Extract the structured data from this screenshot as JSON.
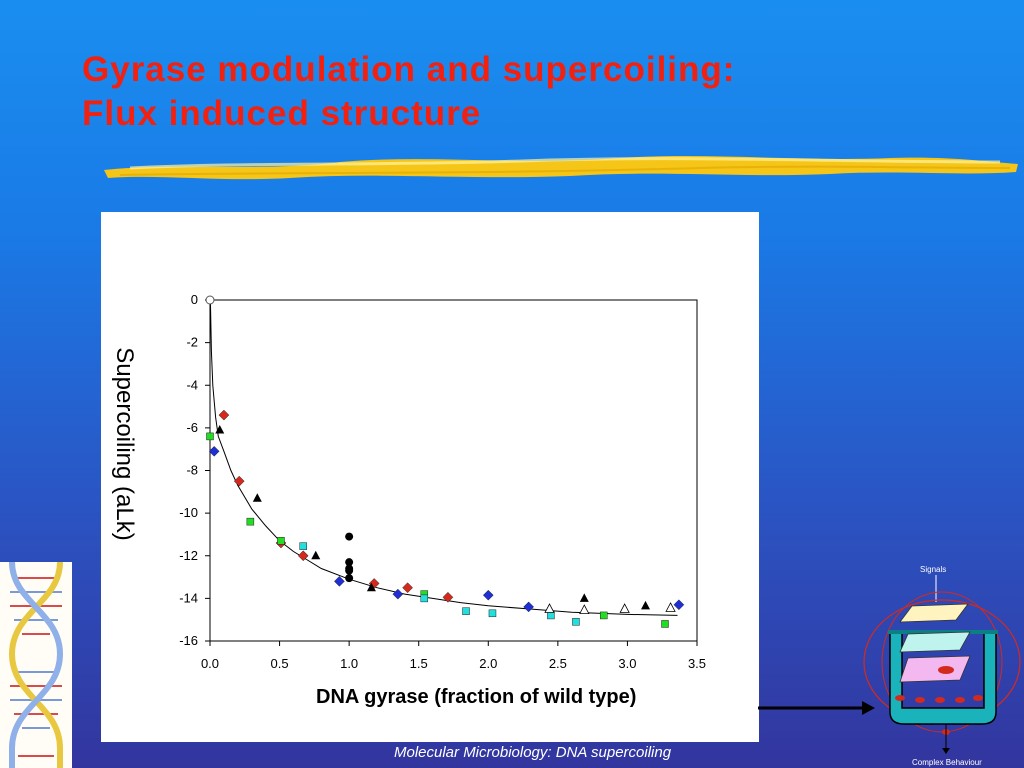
{
  "slide": {
    "title_line1": "Gyrase modulation and supercoiling:",
    "title_line2": "Flux induced structure",
    "footer": "Molecular Microbiology: DNA supercoiling"
  },
  "colors": {
    "title": "#f2200f",
    "brush": "#f5c518",
    "marker_blue": "#1f2fd6",
    "marker_red": "#d42a1e",
    "marker_green": "#22dd22",
    "marker_cyan": "#22dede",
    "marker_black": "#000000"
  },
  "diagram": {
    "signals_label": "Signals",
    "complex_label": "Complex Behaviour"
  },
  "chart_data": {
    "type": "scatter",
    "title": "",
    "xlabel": "DNA gyrase (fraction of wild type)",
    "ylabel": "Supercoiling (aLk)",
    "xlim": [
      0,
      3.5
    ],
    "ylim": [
      -16,
      0
    ],
    "x_ticks": [
      "0.0",
      "0.5",
      "1.0",
      "1.5",
      "2.0",
      "2.5",
      "3.0",
      "3.5"
    ],
    "y_ticks": [
      "0",
      "-2",
      "-4",
      "-6",
      "-8",
      "-10",
      "-12",
      "-14",
      "-16"
    ],
    "grid": false,
    "legend": "none",
    "fit_curve": [
      [
        0.003,
        0
      ],
      [
        0.01,
        -2.4
      ],
      [
        0.02,
        -4
      ],
      [
        0.04,
        -5.5
      ],
      [
        0.06,
        -6.4
      ],
      [
        0.1,
        -7.1
      ],
      [
        0.15,
        -8.0
      ],
      [
        0.2,
        -8.7
      ],
      [
        0.3,
        -9.8
      ],
      [
        0.4,
        -10.6
      ],
      [
        0.5,
        -11.3
      ],
      [
        0.6,
        -11.8
      ],
      [
        0.7,
        -12.2
      ],
      [
        0.8,
        -12.6
      ],
      [
        1.0,
        -13.1
      ],
      [
        1.2,
        -13.5
      ],
      [
        1.4,
        -13.8
      ],
      [
        1.6,
        -14.0
      ],
      [
        1.8,
        -14.2
      ],
      [
        2.0,
        -14.35
      ],
      [
        2.3,
        -14.5
      ],
      [
        2.6,
        -14.65
      ],
      [
        3.0,
        -14.75
      ],
      [
        3.36,
        -14.8
      ]
    ],
    "series": [
      {
        "marker": "diamond",
        "color": "#1f2fd6",
        "points": [
          [
            0.03,
            -7.1
          ],
          [
            0.93,
            -13.2
          ],
          [
            1.35,
            -13.8
          ],
          [
            2.0,
            -13.85
          ],
          [
            2.29,
            -14.4
          ],
          [
            3.37,
            -14.3
          ]
        ]
      },
      {
        "marker": "diamond",
        "color": "#d42a1e",
        "points": [
          [
            0.1,
            -5.4
          ],
          [
            0.21,
            -8.5
          ],
          [
            0.51,
            -11.4
          ],
          [
            0.67,
            -12.0
          ],
          [
            1.18,
            -13.3
          ],
          [
            1.42,
            -13.5
          ],
          [
            1.71,
            -13.95
          ]
        ]
      },
      {
        "marker": "square",
        "color": "#22dd22",
        "points": [
          [
            0.0,
            -6.4
          ],
          [
            0.29,
            -10.4
          ],
          [
            0.51,
            -11.3
          ],
          [
            1.54,
            -13.8
          ],
          [
            2.83,
            -14.8
          ],
          [
            3.27,
            -15.2
          ]
        ]
      },
      {
        "marker": "square",
        "color": "#22dede",
        "points": [
          [
            0.67,
            -11.55
          ],
          [
            1.54,
            -14.0
          ],
          [
            1.84,
            -14.6
          ],
          [
            2.03,
            -14.7
          ],
          [
            2.45,
            -14.8
          ],
          [
            2.63,
            -15.1
          ]
        ]
      },
      {
        "marker": "triangle",
        "color": "#000000",
        "points": [
          [
            0.07,
            -6.1
          ],
          [
            0.34,
            -9.3
          ],
          [
            0.76,
            -12.0
          ],
          [
            1.16,
            -13.5
          ],
          [
            2.69,
            -14.0
          ],
          [
            3.13,
            -14.35
          ]
        ]
      },
      {
        "marker": "triangle-open",
        "color": "#000000",
        "points": [
          [
            2.44,
            -14.5
          ],
          [
            2.69,
            -14.55
          ],
          [
            2.98,
            -14.5
          ],
          [
            3.31,
            -14.45
          ]
        ]
      },
      {
        "marker": "circle",
        "color": "#000000",
        "points": [
          [
            1.0,
            -11.1
          ],
          [
            1.0,
            -12.3
          ],
          [
            1.0,
            -12.6
          ],
          [
            1.0,
            -12.7
          ],
          [
            1.0,
            -13.05
          ]
        ]
      },
      {
        "marker": "circle-open",
        "color": "#000000",
        "points": [
          [
            0.0,
            0.0
          ]
        ]
      }
    ]
  }
}
